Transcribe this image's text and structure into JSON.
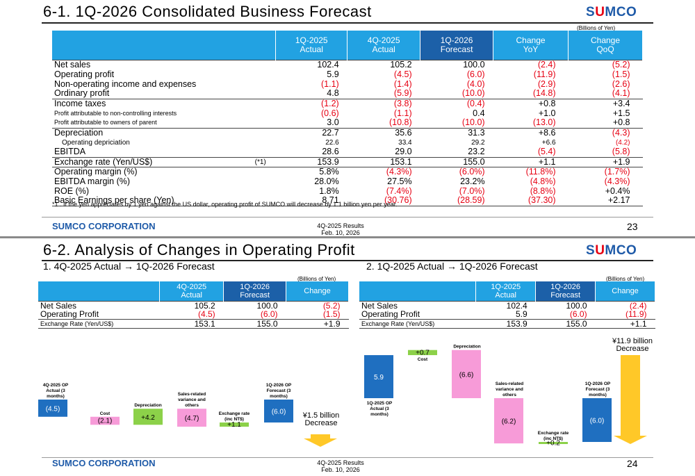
{
  "slide1": {
    "title": "6-1. 1Q-2026 Consolidated Business Forecast",
    "logo_pre": "S",
    "logo_u": "U",
    "logo_post": "MCO",
    "units": "(Billions of Yen)",
    "headers": [
      {
        "l1": "1Q-2025",
        "l2": "Actual"
      },
      {
        "l1": "4Q-2025",
        "l2": "Actual"
      },
      {
        "l1": "1Q-2026",
        "l2": "Forecast"
      },
      {
        "l1": "Change",
        "l2": "YoY"
      },
      {
        "l1": "Change",
        "l2": "QoQ"
      }
    ],
    "rows": [
      {
        "label": "Net sales",
        "note": "",
        "values": [
          "102.4",
          "105.2",
          "100.0",
          "(2.4)",
          "(5.2)"
        ]
      },
      {
        "label": "Operating profit",
        "note": "",
        "values": [
          "5.9",
          "(4.5)",
          "(6.0)",
          "(11.9)",
          "(1.5)"
        ]
      },
      {
        "label": "Non-operating income and expenses",
        "note": "",
        "values": [
          "(1.1)",
          "(1.4)",
          "(4.0)",
          "(2.9)",
          "(2.6)"
        ]
      },
      {
        "label": "Ordinary profit",
        "note": "",
        "values": [
          "4.8",
          "(5.9)",
          "(10.0)",
          "(14.8)",
          "(4.1)"
        ]
      },
      {
        "label": "Income taxes",
        "note": "",
        "values": [
          "(1.2)",
          "(3.8)",
          "(0.4)",
          "+0.8",
          "+3.4"
        ]
      },
      {
        "label": "Profit attributable to non-controlling interests",
        "note": "",
        "values": [
          "(0.6)",
          "(1.1)",
          "0.4",
          "+1.0",
          "+1.5"
        ]
      },
      {
        "label": "Profit attributable to owners of parent",
        "note": "",
        "values": [
          "3.0",
          "(10.8)",
          "(10.0)",
          "(13.0)",
          "+0.8"
        ]
      },
      {
        "label": "Depreciation",
        "note": "",
        "values": [
          "22.7",
          "35.6",
          "31.3",
          "+8.6",
          "(4.3)"
        ]
      },
      {
        "label": "Operating depriciation",
        "note": "",
        "values": [
          "22.6",
          "33.4",
          "29.2",
          "+6.6",
          "(4.2)"
        ]
      },
      {
        "label": "EBITDA",
        "note": "",
        "values": [
          "28.6",
          "29.0",
          "23.2",
          "(5.4)",
          "(5.8)"
        ]
      },
      {
        "label": "Exchange rate (Yen/US$)",
        "note": "(*1)",
        "values": [
          "153.9",
          "153.1",
          "155.0",
          "+1.1",
          "+1.9"
        ]
      },
      {
        "label": "Operating margin (%)",
        "note": "",
        "values": [
          "5.8%",
          "(4.3%)",
          "(6.0%)",
          "(11.8%)",
          "(1.7%)"
        ]
      },
      {
        "label": "EBITDA margin (%)",
        "note": "",
        "values": [
          "28.0%",
          "27.5%",
          "23.2%",
          "(4.8%)",
          "(4.3%)"
        ]
      },
      {
        "label": "ROE (%)",
        "note": "",
        "values": [
          "1.8%",
          "(7.4%)",
          "(7.0%)",
          "(8.8%)",
          "+0.4%"
        ]
      },
      {
        "label": "Basic Earnings per share (Yen)",
        "note": "",
        "values": [
          "8.71",
          "(30.76)",
          "(28.59)",
          "(37.30)",
          "+2.17"
        ]
      }
    ],
    "footnote": "*1 . If the yen appreciates by 1 yen against the US dollar, operating profit of SUMCO will decrease by 1.1 billion yen per year.",
    "footer_company": "SUMCO CORPORATION",
    "footer_l1": "4Q-2025 Results",
    "footer_l2": "Feb. 10, 2026",
    "page": "23"
  },
  "slide2": {
    "title": "6-2. Analysis of Changes in Operating Profit",
    "logo_pre": "S",
    "logo_u": "U",
    "logo_post": "MCO",
    "units": "(Billions of Yen)",
    "left": {
      "subtitle": "1. 4Q-2025 Actual → 1Q-2026 Forecast",
      "headers": [
        {
          "l1": "4Q-2025",
          "l2": "Actual"
        },
        {
          "l1": "1Q-2026",
          "l2": "Forecast"
        },
        {
          "l1": "Change",
          "l2": ""
        }
      ],
      "rows": [
        {
          "label": "Net Sales",
          "values": [
            "105.2",
            "100.0",
            "(5.2)"
          ]
        },
        {
          "label": "Operating Profit",
          "values": [
            "(4.5)",
            "(6.0)",
            "(1.5)"
          ]
        },
        {
          "label": "Exchange Rate (Yen/US$)",
          "values": [
            "153.1",
            "155.0",
            "+1.9"
          ]
        }
      ]
    },
    "right": {
      "subtitle": "2. 1Q-2025 Actual → 1Q-2026 Forecast",
      "headers": [
        {
          "l1": "1Q-2025",
          "l2": "Actual"
        },
        {
          "l1": "1Q-2026",
          "l2": "Forecast"
        },
        {
          "l1": "Change",
          "l2": ""
        }
      ],
      "rows": [
        {
          "label": "Net Sales",
          "values": [
            "102.4",
            "100.0",
            "(2.4)"
          ]
        },
        {
          "label": "Operating Profit",
          "values": [
            "5.9",
            "(6.0)",
            "(11.9)"
          ]
        },
        {
          "label": "Exchange Rate (Yen/US$)",
          "values": [
            "153.9",
            "155.0",
            "+1.1"
          ]
        }
      ]
    },
    "footer_company": "SUMCO CORPORATION",
    "footer_l1": "4Q-2025 Results",
    "footer_l2": "Feb. 10, 2026",
    "page": "24"
  },
  "chart_data": [
    {
      "type": "waterfall",
      "units": "Billions of Yen",
      "steps": [
        {
          "label": "4Q-2025 OP Actual (3 months)",
          "value": -4.5,
          "display": "(4.5)",
          "kind": "total"
        },
        {
          "label": "Cost",
          "value": -2.1,
          "display": "(2.1)",
          "kind": "decrease"
        },
        {
          "label": "Depreciation",
          "value": 4.2,
          "display": "+4.2",
          "kind": "increase"
        },
        {
          "label": "Sales-related variance and others",
          "value": -4.7,
          "display": "(4.7)",
          "kind": "decrease"
        },
        {
          "label": "Exchange rate (inc NT$)",
          "value": 1.1,
          "display": "+1.1",
          "kind": "increase"
        },
        {
          "label": "1Q-2026 OP Forecast (3 months)",
          "value": -6.0,
          "display": "(6.0)",
          "kind": "total"
        }
      ],
      "annotation": {
        "l1": "¥1.5 billion",
        "l2": "Decrease"
      }
    },
    {
      "type": "waterfall",
      "units": "Billions of Yen",
      "steps": [
        {
          "label": "1Q-2025 OP Actual (3 months)",
          "value": 5.9,
          "display": "5.9",
          "kind": "total"
        },
        {
          "label": "Cost",
          "value": 0.7,
          "display": "+0.7",
          "kind": "increase"
        },
        {
          "label": "Depreciation",
          "value": -6.6,
          "display": "(6.6)",
          "kind": "decrease"
        },
        {
          "label": "Sales-related variance and others",
          "value": -6.2,
          "display": "(6.2)",
          "kind": "decrease"
        },
        {
          "label": "Exchange rate (inc NT$)",
          "value": 0.2,
          "display": "+0.2",
          "kind": "increase"
        },
        {
          "label": "1Q-2026 OP Forecast (3 months)",
          "value": -6.0,
          "display": "(6.0)",
          "kind": "total"
        }
      ],
      "annotation": {
        "l1": "¥11.9 billion",
        "l2": "Decrease"
      }
    }
  ],
  "colors": {
    "header": "#22a2e2",
    "header_dark": "#1c60a8",
    "negative": "#e60012",
    "total_bar": "#1f6fc0",
    "pink_bar": "#f79bd8",
    "green_bar": "#8cd149",
    "arrow": "#ffc828",
    "brand": "#1e5aa8"
  }
}
